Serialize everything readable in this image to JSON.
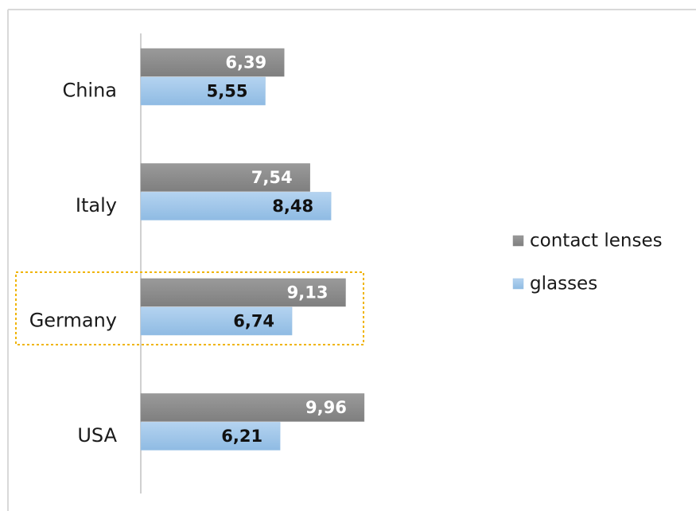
{
  "chart_data": {
    "type": "bar",
    "orientation": "horizontal",
    "categories": [
      "China",
      "Italy",
      "Germany",
      "USA"
    ],
    "series": [
      {
        "name": "contact lenses",
        "color": "#8c8c8c",
        "values": [
          6.39,
          7.54,
          9.13,
          9.96
        ],
        "value_labels": [
          "6,39",
          "7,54",
          "9,13",
          "9,96"
        ]
      },
      {
        "name": "glasses",
        "color": "#9dc3e6",
        "values": [
          5.55,
          8.48,
          6.74,
          6.21
        ],
        "value_labels": [
          "5,55",
          "8,48",
          "6,74",
          "6,21"
        ]
      }
    ],
    "xlim": [
      0,
      10
    ],
    "legend": "right"
  }
}
